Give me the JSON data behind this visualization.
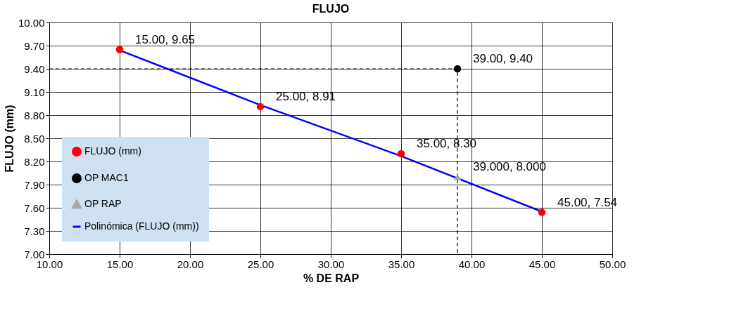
{
  "chart_data": {
    "type": "scatter",
    "title": "FLUJO",
    "xlabel": "% DE RAP",
    "ylabel": "FLUJO (mm)",
    "xlim": [
      10,
      50
    ],
    "xticks": [
      {
        "value": 10,
        "label": "10.00"
      },
      {
        "value": 15,
        "label": "15.00"
      },
      {
        "value": 20,
        "label": "20.00"
      },
      {
        "value": 25,
        "label": "25.00"
      },
      {
        "value": 30,
        "label": "30.00"
      },
      {
        "value": 35,
        "label": "35.00"
      },
      {
        "value": 40,
        "label": "40.00"
      },
      {
        "value": 45,
        "label": "45.00"
      },
      {
        "value": 50,
        "label": "50.00"
      }
    ],
    "ylim": [
      7,
      10
    ],
    "yticks": [
      {
        "value": 7,
        "label": "7.00"
      },
      {
        "value": 7.3,
        "label": "7.30"
      },
      {
        "value": 7.6,
        "label": "7.60"
      },
      {
        "value": 7.9,
        "label": "7.90"
      },
      {
        "value": 8.2,
        "label": "8.20"
      },
      {
        "value": 8.5,
        "label": "8.50"
      },
      {
        "value": 8.8,
        "label": "8.80"
      },
      {
        "value": 9.1,
        "label": "9.10"
      },
      {
        "value": 9.4,
        "label": "9.40"
      },
      {
        "value": 9.7,
        "label": "9.70"
      },
      {
        "value": 10,
        "label": "10.00"
      }
    ],
    "grid": true,
    "legend": "bottom left",
    "series": [
      {
        "name": "FLUJO (mm)",
        "marker": "circle",
        "color": "#ff0000",
        "x": [
          15,
          25,
          35,
          45
        ],
        "values": [
          9.65,
          8.91,
          8.3,
          7.54
        ],
        "value_labels": [
          "15.00, 9.65",
          "25.00, 8.91",
          "35.00, 8.30",
          "45.00, 7.54"
        ]
      },
      {
        "name": "OP MAC1",
        "marker": "circle",
        "color": "#000000",
        "x": [
          39
        ],
        "values": [
          9.4
        ],
        "value_labels": [
          "39.00, 9.40"
        ]
      },
      {
        "type": "line",
        "marker": "none",
        "line_style": "dashed",
        "color": "#000000",
        "x": [
          10,
          39,
          39
        ],
        "values": [
          9.4,
          9.4,
          7.0
        ]
      },
      {
        "name": "OP RAP",
        "marker": "triangle",
        "color": "#a6a6a6",
        "x": [
          39
        ],
        "values": [
          8.0
        ],
        "value_labels": [
          "39.000, 8.000"
        ]
      },
      {
        "name": "Polinómica (FLUJO (mm))",
        "type": "line",
        "marker": "none",
        "line_style": "solid",
        "color": "#0000ff",
        "x": [
          15,
          25,
          35,
          45
        ],
        "values": [
          9.64,
          8.93,
          8.27,
          7.55
        ]
      }
    ]
  }
}
